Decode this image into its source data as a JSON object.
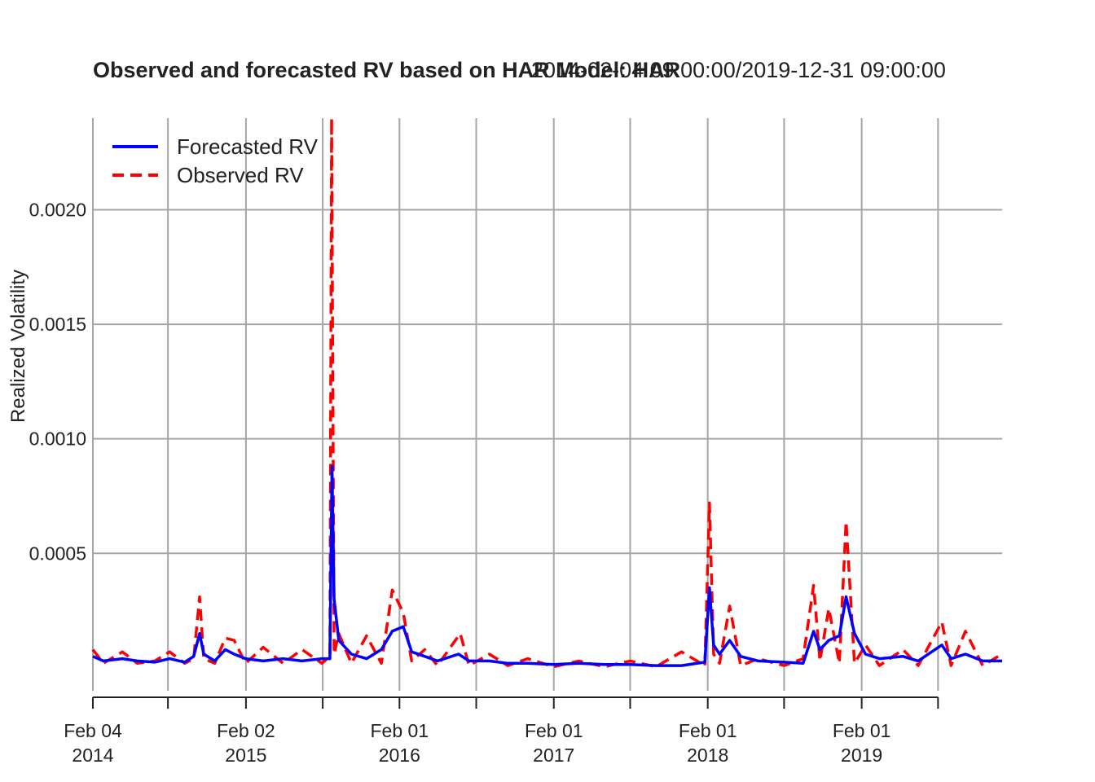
{
  "chart_data": {
    "type": "line",
    "title": "Observed and forecasted RV based on HAR Model: HAR",
    "subtitle": "2014-02-04 09:00:00/2019-12-31 09:00:00",
    "ylabel": "Realized Volatility",
    "xlabel": "",
    "ylim": [
      -0.0001,
      0.0024
    ],
    "y_ticks": [
      {
        "value": 0.0005,
        "label": "0.0005"
      },
      {
        "value": 0.001,
        "label": "0.0010"
      },
      {
        "value": 0.0015,
        "label": "0.0015"
      },
      {
        "value": 0.002,
        "label": "0.0020"
      }
    ],
    "x_range": [
      "2014-02-04",
      "2019-12-31"
    ],
    "x_major_ticks": [
      {
        "date": "2014-02-04",
        "line1": "Feb 04",
        "line2": "2014"
      },
      {
        "date": "2015-02-02",
        "line1": "Feb 02",
        "line2": "2015"
      },
      {
        "date": "2016-02-01",
        "line1": "Feb 01",
        "line2": "2016"
      },
      {
        "date": "2017-02-01",
        "line1": "Feb 01",
        "line2": "2017"
      },
      {
        "date": "2018-02-01",
        "line1": "Feb 01",
        "line2": "2018"
      },
      {
        "date": "2019-02-01",
        "line1": "Feb 01",
        "line2": "2019"
      }
    ],
    "x_minor_ticks": [
      "2014-08-01",
      "2015-08-03",
      "2016-08-01",
      "2017-08-01",
      "2018-08-01",
      "2019-08-01"
    ],
    "grid": true,
    "legend_position": "top-left",
    "series": [
      {
        "name": "Forecasted RV",
        "color": "#0000ff",
        "style": "solid",
        "points": [
          [
            "2014-02-04",
            5e-05
          ],
          [
            "2014-03-01",
            3e-05
          ],
          [
            "2014-04-15",
            4e-05
          ],
          [
            "2014-05-20",
            3e-05
          ],
          [
            "2014-07-01",
            2.5e-05
          ],
          [
            "2014-08-05",
            4e-05
          ],
          [
            "2014-09-10",
            2.5e-05
          ],
          [
            "2014-10-01",
            5e-05
          ],
          [
            "2014-10-15",
            0.00015
          ],
          [
            "2014-10-25",
            6e-05
          ],
          [
            "2014-11-20",
            3e-05
          ],
          [
            "2014-12-15",
            8e-05
          ],
          [
            "2015-01-05",
            6e-05
          ],
          [
            "2015-02-01",
            4e-05
          ],
          [
            "2015-03-15",
            3e-05
          ],
          [
            "2015-05-01",
            4e-05
          ],
          [
            "2015-06-15",
            3e-05
          ],
          [
            "2015-08-01",
            4e-05
          ],
          [
            "2015-08-20",
            4e-05
          ],
          [
            "2015-08-25",
            0.00088
          ],
          [
            "2015-08-30",
            0.0003
          ],
          [
            "2015-09-10",
            0.00012
          ],
          [
            "2015-10-10",
            6e-05
          ],
          [
            "2015-11-15",
            4e-05
          ],
          [
            "2015-12-20",
            8e-05
          ],
          [
            "2016-01-15",
            0.00016
          ],
          [
            "2016-02-10",
            0.00018
          ],
          [
            "2016-03-01",
            7e-05
          ],
          [
            "2016-04-01",
            5e-05
          ],
          [
            "2016-05-01",
            3e-05
          ],
          [
            "2016-06-20",
            6e-05
          ],
          [
            "2016-07-15",
            3e-05
          ],
          [
            "2016-09-01",
            3e-05
          ],
          [
            "2016-10-15",
            2e-05
          ],
          [
            "2016-12-01",
            2e-05
          ],
          [
            "2017-02-01",
            1.5e-05
          ],
          [
            "2017-04-01",
            2e-05
          ],
          [
            "2017-06-01",
            1.5e-05
          ],
          [
            "2017-08-01",
            1.5e-05
          ],
          [
            "2017-10-01",
            1e-05
          ],
          [
            "2017-12-01",
            1e-05
          ],
          [
            "2018-01-25",
            2.5e-05
          ],
          [
            "2018-02-05",
            0.00035
          ],
          [
            "2018-02-15",
            0.0001
          ],
          [
            "2018-03-01",
            6e-05
          ],
          [
            "2018-03-25",
            0.00012
          ],
          [
            "2018-04-20",
            5e-05
          ],
          [
            "2018-06-01",
            3e-05
          ],
          [
            "2018-08-01",
            2.5e-05
          ],
          [
            "2018-09-15",
            2e-05
          ],
          [
            "2018-10-10",
            0.00016
          ],
          [
            "2018-10-25",
            8e-05
          ],
          [
            "2018-11-15",
            0.00012
          ],
          [
            "2018-12-10",
            0.00014
          ],
          [
            "2018-12-26",
            0.00031
          ],
          [
            "2019-01-15",
            0.00015
          ],
          [
            "2019-02-10",
            6e-05
          ],
          [
            "2019-03-15",
            4e-05
          ],
          [
            "2019-05-10",
            5e-05
          ],
          [
            "2019-06-15",
            3e-05
          ],
          [
            "2019-08-10",
            0.0001
          ],
          [
            "2019-09-01",
            4e-05
          ],
          [
            "2019-10-05",
            6e-05
          ],
          [
            "2019-11-15",
            3e-05
          ],
          [
            "2019-12-31",
            3e-05
          ]
        ]
      },
      {
        "name": "Observed RV",
        "color": "#ff0000",
        "style": "dashed",
        "points": [
          [
            "2014-02-04",
            8e-05
          ],
          [
            "2014-03-01",
            2e-05
          ],
          [
            "2014-04-15",
            7e-05
          ],
          [
            "2014-05-20",
            2e-05
          ],
          [
            "2014-07-01",
            3e-05
          ],
          [
            "2014-08-05",
            7e-05
          ],
          [
            "2014-09-10",
            2e-05
          ],
          [
            "2014-10-01",
            4e-05
          ],
          [
            "2014-10-15",
            0.00031
          ],
          [
            "2014-10-25",
            4e-05
          ],
          [
            "2014-11-20",
            2e-05
          ],
          [
            "2014-12-15",
            0.00013
          ],
          [
            "2015-01-05",
            0.00012
          ],
          [
            "2015-02-01",
            2e-05
          ],
          [
            "2015-03-15",
            9e-05
          ],
          [
            "2015-05-01",
            2e-05
          ],
          [
            "2015-06-15",
            8e-05
          ],
          [
            "2015-08-01",
            2e-05
          ],
          [
            "2015-08-20",
            5e-05
          ],
          [
            "2015-08-24",
            0.0024
          ],
          [
            "2015-08-30",
            6e-05
          ],
          [
            "2015-09-10",
            0.00015
          ],
          [
            "2015-10-10",
            2e-05
          ],
          [
            "2015-11-15",
            0.00014
          ],
          [
            "2015-12-20",
            2e-05
          ],
          [
            "2016-01-15",
            0.00034
          ],
          [
            "2016-02-10",
            0.00024
          ],
          [
            "2016-03-01",
            3e-05
          ],
          [
            "2016-04-01",
            8e-05
          ],
          [
            "2016-05-01",
            1e-05
          ],
          [
            "2016-06-24",
            0.00015
          ],
          [
            "2016-07-15",
            1e-05
          ],
          [
            "2016-09-01",
            6e-05
          ],
          [
            "2016-10-15",
            1e-05
          ],
          [
            "2016-12-01",
            4e-05
          ],
          [
            "2017-02-01",
            5e-06
          ],
          [
            "2017-04-01",
            3e-05
          ],
          [
            "2017-06-01",
            5e-06
          ],
          [
            "2017-08-01",
            3e-05
          ],
          [
            "2017-10-01",
            5e-06
          ],
          [
            "2017-12-01",
            7e-05
          ],
          [
            "2018-01-25",
            1e-05
          ],
          [
            "2018-02-05",
            0.00072
          ],
          [
            "2018-02-15",
            6e-05
          ],
          [
            "2018-03-01",
            2e-05
          ],
          [
            "2018-03-25",
            0.00027
          ],
          [
            "2018-04-20",
            1e-05
          ],
          [
            "2018-06-01",
            4e-05
          ],
          [
            "2018-08-01",
            1e-05
          ],
          [
            "2018-09-15",
            4e-05
          ],
          [
            "2018-10-10",
            0.00036
          ],
          [
            "2018-10-25",
            3e-05
          ],
          [
            "2018-11-15",
            0.00026
          ],
          [
            "2018-12-10",
            2e-05
          ],
          [
            "2018-12-26",
            0.00064
          ],
          [
            "2019-01-15",
            2e-05
          ],
          [
            "2019-02-10",
            0.0001
          ],
          [
            "2019-03-15",
            1e-05
          ],
          [
            "2019-05-10",
            8e-05
          ],
          [
            "2019-06-15",
            1e-05
          ],
          [
            "2019-08-10",
            0.0002
          ],
          [
            "2019-09-01",
            1e-05
          ],
          [
            "2019-10-05",
            0.00016
          ],
          [
            "2019-11-15",
            1e-05
          ],
          [
            "2019-12-31",
            6e-05
          ]
        ]
      }
    ]
  }
}
